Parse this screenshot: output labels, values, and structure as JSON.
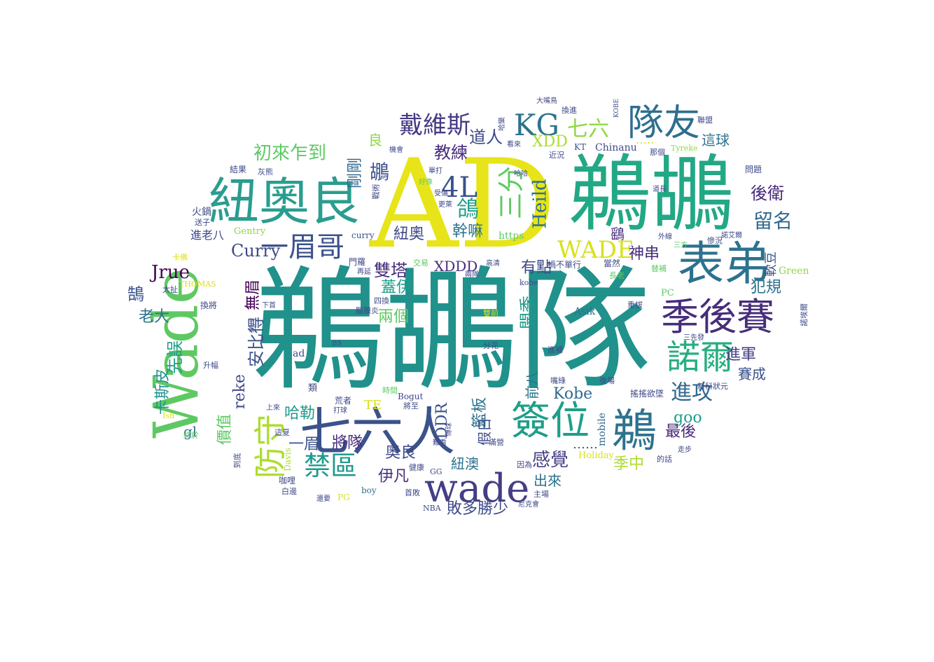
{
  "words": [
    {
      "text": "鵜鶘隊",
      "color": "#21918c"
    },
    {
      "text": "AD",
      "color": "#e7e419"
    },
    {
      "text": "鵜鶘",
      "color": "#22a884"
    },
    {
      "text": "Wade",
      "color": "#5ec962"
    },
    {
      "text": "紐奧良",
      "color": "#2a9d8f"
    },
    {
      "text": "七六人",
      "color": "#3b528b"
    },
    {
      "text": "表弟",
      "color": "#2c728e"
    },
    {
      "text": "季後賽",
      "color": "#472d7b"
    },
    {
      "text": "wade",
      "color": "#433e85"
    },
    {
      "text": "隊友",
      "color": "#2e6e8e"
    },
    {
      "text": "簽位",
      "color": "#1f9e89"
    },
    {
      "text": "鵜",
      "color": "#2c728e"
    },
    {
      "text": "諾爾",
      "color": "#27ad81"
    },
    {
      "text": "KG",
      "color": "#2c728e"
    },
    {
      "text": "防守",
      "color": "#addc30"
    },
    {
      "text": "一眉哥",
      "color": "#3b528b"
    },
    {
      "text": "戴維斯",
      "color": "#443a83"
    },
    {
      "text": "禁區",
      "color": "#1f9a8a"
    },
    {
      "text": "4L",
      "color": "#3b528b"
    },
    {
      "text": "三分",
      "color": "#5ec962"
    },
    {
      "text": "WADE",
      "color": "#d8e219"
    },
    {
      "text": "初來乍到",
      "color": "#5ec962"
    },
    {
      "text": "七六",
      "color": "#8fd744"
    },
    {
      "text": "進攻",
      "color": "#31688e"
    },
    {
      "text": "Heild",
      "color": "#2c728e"
    },
    {
      "text": "鴿",
      "color": "#1f9e89"
    },
    {
      "text": "教練",
      "color": "#472d7b"
    },
    {
      "text": "道人",
      "color": "#3e4989"
    },
    {
      "text": "XDD",
      "color": "#addc30"
    },
    {
      "text": "這球",
      "color": "#2c728e"
    },
    {
      "text": "Curry",
      "color": "#3e4989"
    },
    {
      "text": "Jrue",
      "color": "#440154"
    },
    {
      "text": "留名",
      "color": "#31688e"
    },
    {
      "text": "後衛",
      "color": "#482878"
    },
    {
      "text": "雙塔",
      "color": "#472d7b"
    },
    {
      "text": "紐奧",
      "color": "#3e4989"
    },
    {
      "text": "幹嘛",
      "color": "#2c728e"
    },
    {
      "text": "神串",
      "color": "#472d7b"
    },
    {
      "text": "有點",
      "color": "#3e4989"
    },
    {
      "text": "XDDD",
      "color": "#472d7b"
    },
    {
      "text": "犯規",
      "color": "#2c728e"
    },
    {
      "text": "軟豆",
      "color": "#3b528b"
    },
    {
      "text": "進軍",
      "color": "#433e85"
    },
    {
      "text": "賽成",
      "color": "#3b528b"
    },
    {
      "text": "開季",
      "color": "#1f9a8a"
    },
    {
      "text": "兩個",
      "color": "#5ec962"
    },
    {
      "text": "蓋伊",
      "color": "#1f9e89"
    },
    {
      "text": "無眉",
      "color": "#440154"
    },
    {
      "text": "安比得",
      "color": "#3b528b"
    },
    {
      "text": "先誤",
      "color": "#1f9e89"
    },
    {
      "text": "卡斯皮",
      "color": "#21918c"
    },
    {
      "text": "老大",
      "color": "#2c728e"
    },
    {
      "text": "reke",
      "color": "#3e4989"
    },
    {
      "text": "哈勒",
      "color": "#1f9a8a"
    },
    {
      "text": "一眉",
      "color": "#3b528b"
    },
    {
      "text": "將隊",
      "color": "#472d7b"
    },
    {
      "text": "DDR",
      "color": "#3b528b"
    },
    {
      "text": "籃板",
      "color": "#2c728e"
    },
    {
      "text": "假日",
      "color": "#3e4989"
    },
    {
      "text": "奧良",
      "color": "#3e4989"
    },
    {
      "text": "伊凡",
      "color": "#472d7b"
    },
    {
      "text": "紐澳",
      "color": "#2c728e"
    },
    {
      "text": "感覺",
      "color": "#433e85"
    },
    {
      "text": "出來",
      "color": "#2c728e"
    },
    {
      "text": "敗多勝少",
      "color": "#3e4989"
    },
    {
      "text": "季中",
      "color": "#addc30"
    },
    {
      "text": "最後",
      "color": "#482878"
    },
    {
      "text": "goo",
      "color": "#1f9e89"
    },
    {
      "text": "Kobe",
      "color": "#31688e"
    },
    {
      "text": "前八",
      "color": "#2c728e"
    },
    {
      "text": "剛剛",
      "color": "#31688e"
    },
    {
      "text": "良",
      "color": "#8fd744"
    },
    {
      "text": "鶘",
      "color": "#3b528b"
    },
    {
      "text": "鵠",
      "color": "#3b528b"
    },
    {
      "text": "鷂",
      "color": "#472d7b"
    },
    {
      "text": "價值",
      "color": "#5ec962"
    },
    {
      "text": "gl",
      "color": "#2c728e"
    },
    {
      "text": "TE",
      "color": "#d8e219"
    },
    {
      "text": "https",
      "color": "#5ec962"
    },
    {
      "text": "Asik",
      "color": "#2c728e"
    },
    {
      "text": "Chinanu",
      "color": "#3e4989"
    },
    {
      "text": "KT",
      "color": "#3b528b"
    },
    {
      "text": "Green",
      "color": "#8fd744"
    },
    {
      "text": "mobile",
      "color": "#31688e"
    },
    {
      "text": "Holiday",
      "color": "#d8e219"
    },
    {
      "text": "……",
      "color": "#3b528b"
    },
    {
      "text": "…..",
      "color": "#d8e219"
    },
    {
      "text": "Gentry",
      "color": "#8fd744"
    },
    {
      "text": "curry",
      "color": "#3b528b"
    },
    {
      "text": "Bogut",
      "color": "#3e4989"
    },
    {
      "text": "THOMAS",
      "color": "#d8e219"
    },
    {
      "text": "ad",
      "color": "#3e4989"
    },
    {
      "text": "PC",
      "color": "#5ec962"
    },
    {
      "text": "PG",
      "color": "#d8e219"
    },
    {
      "text": "boy",
      "color": "#2c728e"
    },
    {
      "text": "GG",
      "color": "#3e4989"
    },
    {
      "text": "NBA",
      "color": "#3e4989"
    },
    {
      "text": "Davis",
      "color": "#addc30"
    },
    {
      "text": "Ish",
      "color": "#d8e219"
    },
    {
      "text": "BS",
      "color": "#3e4989"
    },
    {
      "text": "kobe",
      "color": "#3e4989"
    },
    {
      "text": "Tyreke",
      "color": "#8fd744"
    },
    {
      "text": "KOBE",
      "color": "#3e4989"
    },
    {
      "text": "進老八",
      "color": "#3e4989"
    },
    {
      "text": "火鍋",
      "color": "#3e4989"
    },
    {
      "text": "送子",
      "color": "#3e4989"
    },
    {
      "text": "結果",
      "color": "#3e4989"
    },
    {
      "text": "灰熊",
      "color": "#3e4989"
    },
    {
      "text": "卡佛",
      "color": "#d8e219"
    },
    {
      "text": "太扯",
      "color": "#3e4989"
    },
    {
      "text": "換將",
      "color": "#3e4989"
    },
    {
      "text": "升幅",
      "color": "#3e4989"
    },
    {
      "text": "終於",
      "color": "#5ec962"
    },
    {
      "text": "到底",
      "color": "#3e4989"
    },
    {
      "text": "咖哩",
      "color": "#3e4989"
    },
    {
      "text": "白邊",
      "color": "#3e4989"
    },
    {
      "text": "這夏",
      "color": "#3e4989"
    },
    {
      "text": "上來",
      "color": "#3e4989"
    },
    {
      "text": "下首",
      "color": "#3e4989"
    },
    {
      "text": "老八",
      "color": "#3e4989"
    },
    {
      "text": "類",
      "color": "#3e4989"
    },
    {
      "text": "荒者",
      "color": "#3e4989"
    },
    {
      "text": "打球",
      "color": "#3e4989"
    },
    {
      "text": "還要",
      "color": "#3e4989"
    },
    {
      "text": "將至",
      "color": "#3e4989"
    },
    {
      "text": "時間",
      "color": "#5ec962"
    },
    {
      "text": "腦膜炎",
      "color": "#3e4989"
    },
    {
      "text": "四換",
      "color": "#3e4989"
    },
    {
      "text": "雙前",
      "color": "#d8e219"
    },
    {
      "text": "分花",
      "color": "#3e4989"
    },
    {
      "text": "門羅",
      "color": "#3e4989"
    },
    {
      "text": "交易",
      "color": "#5ec962"
    },
    {
      "text": "再延",
      "color": "#3e4989"
    },
    {
      "text": "兩隊",
      "color": "#3e4989"
    },
    {
      "text": "高清",
      "color": "#3e4989"
    },
    {
      "text": "戰術",
      "color": "#3e4989"
    },
    {
      "text": "好像",
      "color": "#5ec962"
    },
    {
      "text": "機會",
      "color": "#3e4989"
    },
    {
      "text": "單打",
      "color": "#3e4989"
    },
    {
      "text": "看來",
      "color": "#3e4989"
    },
    {
      "text": "近況",
      "color": "#3e4989"
    },
    {
      "text": "換進",
      "color": "#3e4989"
    },
    {
      "text": "大嘴鳥",
      "color": "#3e4989"
    },
    {
      "text": "聯盟",
      "color": "#3e4989"
    },
    {
      "text": "那個",
      "color": "#3e4989"
    },
    {
      "text": "問題",
      "color": "#3e4989"
    },
    {
      "text": "道長",
      "color": "#3e4989"
    },
    {
      "text": "諾艾爾",
      "color": "#3e4989"
    },
    {
      "text": "慘況",
      "color": "#3e4989"
    },
    {
      "text": "三方",
      "color": "#5ec962"
    },
    {
      "text": "當然",
      "color": "#3e4989"
    },
    {
      "text": "禍不單行",
      "color": "#3e4989"
    },
    {
      "text": "替補",
      "color": "#5ec962"
    },
    {
      "text": "重拔",
      "color": "#3e4989"
    },
    {
      "text": "諾埃爾",
      "color": "#3e4989"
    },
    {
      "text": "三先發",
      "color": "#3e4989"
    },
    {
      "text": "進補",
      "color": "#3e4989"
    },
    {
      "text": "嘴綠",
      "color": "#3e4989"
    },
    {
      "text": "後場",
      "color": "#3e4989"
    },
    {
      "text": "搖搖欲墜",
      "color": "#3e4989"
    },
    {
      "text": "新科狀元",
      "color": "#3e4989"
    },
    {
      "text": "的話",
      "color": "#3e4989"
    },
    {
      "text": "走步",
      "color": "#3e4989"
    },
    {
      "text": "因為",
      "color": "#3e4989"
    },
    {
      "text": "滿營",
      "color": "#3e4989"
    },
    {
      "text": "健康",
      "color": "#3e4989"
    },
    {
      "text": "首敗",
      "color": "#3e4989"
    },
    {
      "text": "主場",
      "color": "#3e4989"
    },
    {
      "text": "尼克會",
      "color": "#3e4989"
    },
    {
      "text": "難看",
      "color": "#3e4989"
    },
    {
      "text": "傳球",
      "color": "#3e4989"
    },
    {
      "text": "長老",
      "color": "#5ec962"
    },
    {
      "text": "外線",
      "color": "#3e4989"
    },
    {
      "text": "受傷",
      "color": "#3e4989"
    },
    {
      "text": "更萊",
      "color": "#3e4989"
    },
    {
      "text": "哈哈",
      "color": "#3e4989"
    },
    {
      "text": "哈欒",
      "color": "#3e4989"
    }
  ]
}
